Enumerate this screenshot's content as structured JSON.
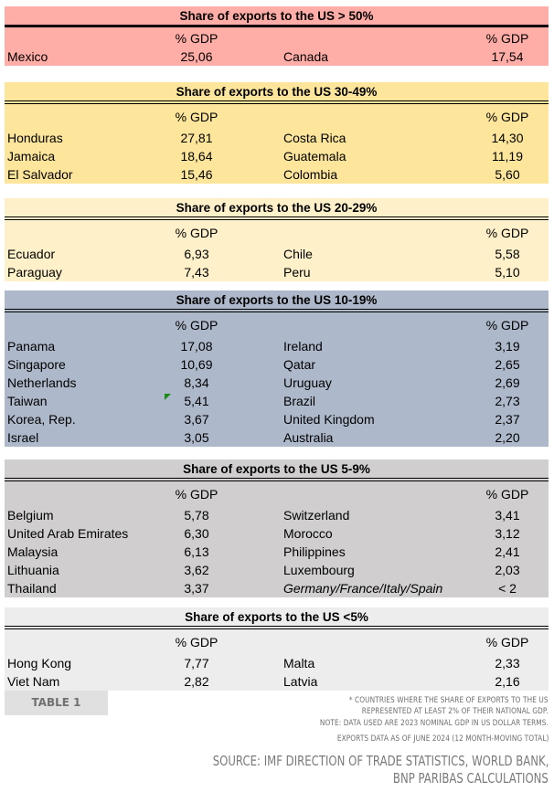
{
  "colors": {
    "s1": "#FFADA6",
    "s2": "#FDE59B",
    "s3": "#FEF0C8",
    "s4": "#ADB9CA",
    "s5": "#D0CECE",
    "s6": "#EDEDED"
  },
  "col_label": "% GDP",
  "sections": [
    {
      "title": "Share of exports to the US > 50%",
      "rows": [
        [
          "Mexico",
          "25,06",
          "Canada",
          "17,54"
        ]
      ]
    },
    {
      "title": "Share of exports to the US 30-49%",
      "rows": [
        [
          "Honduras",
          "27,81",
          "Costa Rica",
          "14,30"
        ],
        [
          "Jamaica",
          "18,64",
          "Guatemala",
          "11,19"
        ],
        [
          "El Salvador",
          "15,46",
          "Colombia",
          "5,60"
        ]
      ]
    },
    {
      "title": "Share of exports to the US 20-29%",
      "rows": [
        [
          "Ecuador",
          "6,93",
          "Chile",
          "5,58"
        ],
        [
          "Paraguay",
          "7,43",
          "Peru",
          "5,10"
        ]
      ]
    },
    {
      "title": "Share of exports to the US 10-19%",
      "rows": [
        [
          "Panama",
          "17,08",
          "Ireland",
          "3,19"
        ],
        [
          "Singapore",
          "10,69",
          "Qatar",
          "2,65"
        ],
        [
          "Netherlands",
          "8,34",
          "Uruguay",
          "2,69"
        ],
        [
          "Taiwan",
          "5,41",
          "Brazil",
          "2,73"
        ],
        [
          "Korea, Rep.",
          "3,67",
          "United Kingdom",
          "2,37"
        ],
        [
          "Israel",
          "3,05",
          "Australia",
          "2,20"
        ]
      ]
    },
    {
      "title": "Share of exports to the US 5-9%",
      "rows": [
        [
          "Belgium",
          "5,78",
          "Switzerland",
          "3,41"
        ],
        [
          "United Arab Emirates",
          "6,30",
          "Morocco",
          "3,12"
        ],
        [
          "Malaysia",
          "6,13",
          "Philippines",
          "2,41"
        ],
        [
          "Lithuania",
          "3,62",
          "Luxembourg",
          "2,03"
        ],
        [
          "Thailand",
          "3,37",
          "Germany/France/Italy/Spain",
          "< 2"
        ]
      ]
    },
    {
      "title": "Share of exports to the US <5%",
      "rows": [
        [
          "Hong Kong",
          "7,77",
          "Malta",
          "2,33"
        ],
        [
          "Viet Nam",
          "2,82",
          "Latvia",
          "2,16"
        ]
      ]
    }
  ],
  "footer": {
    "table_label": "TABLE 1",
    "notes": [
      "* COUNTRIES WHERE THE SHARE OF EXPORTS TO THE US",
      "REPRESENTED AT LEAST 2% OF THEIR NATIONAL GDP.",
      "NOTE: DATA USED ARE 2023 NOMINAL GDP IN US DOLLAR TERMS.",
      "EXPORTS DATA AS OF JUNE 2024 (12 MONTH-MOVING TOTAL)"
    ],
    "source": [
      "SOURCE: IMF DIRECTION OF TRADE STATISTICS, WORLD BANK,",
      "BNP PARIBAS CALCULATIONS"
    ]
  }
}
